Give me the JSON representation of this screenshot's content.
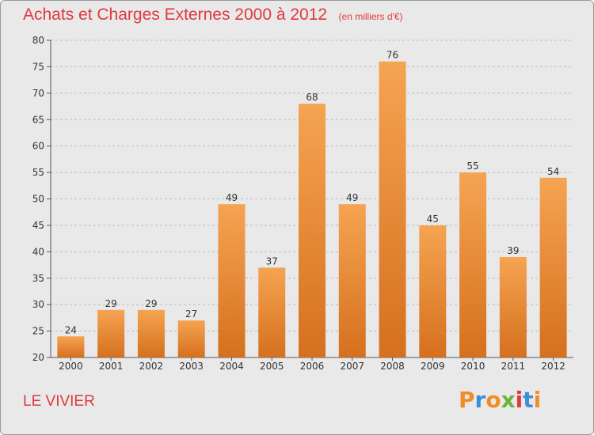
{
  "header": {
    "title": "Achats et Charges Externes 2000 à 2012",
    "subtitle": "(en milliers d'€)"
  },
  "footer": {
    "commune": "LE VIVIER",
    "logo": {
      "letters": [
        "P",
        "r",
        "o",
        "x",
        "i",
        "t",
        "i"
      ],
      "colors": [
        "#f28c28",
        "#3a8fd6",
        "#f28c28",
        "#6bb33a",
        "#e0393e",
        "#3a8fd6",
        "#f28c28"
      ]
    }
  },
  "colors": {
    "bar_top": "#f5a452",
    "bar_bottom": "#d5701e",
    "title": "#e0393e",
    "background": "#e9e9e9"
  },
  "chart_data": {
    "type": "bar",
    "categories": [
      "2000",
      "2001",
      "2002",
      "2003",
      "2004",
      "2005",
      "2006",
      "2007",
      "2008",
      "2009",
      "2010",
      "2011",
      "2012"
    ],
    "values": [
      24,
      29,
      29,
      27,
      49,
      37,
      68,
      49,
      76,
      45,
      55,
      39,
      54
    ],
    "ylim": [
      20,
      80
    ],
    "yticks": [
      20,
      25,
      30,
      35,
      40,
      45,
      50,
      55,
      60,
      65,
      70,
      75,
      80
    ],
    "grid": true
  }
}
